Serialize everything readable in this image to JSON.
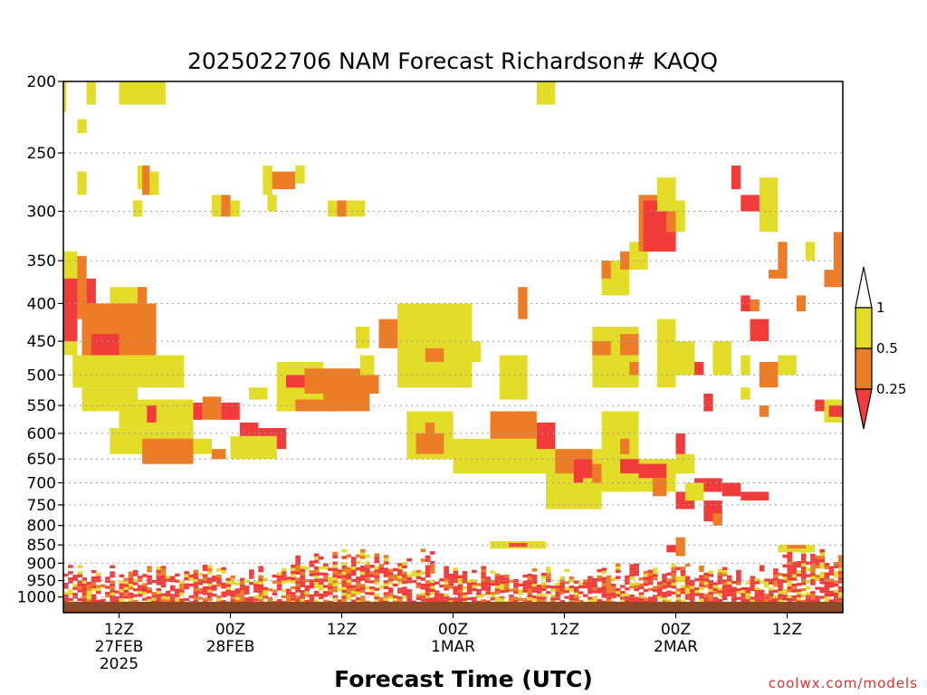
{
  "chart_data": {
    "type": "heatmap",
    "title": "2025022706 NAM Forecast Richardson# KAQQ",
    "xlabel": "Forecast Time (UTC)",
    "ylabel": "",
    "y_axis": {
      "scale": "pressure (log)",
      "range_hpa": [
        200,
        1050
      ],
      "ticks": [
        200,
        250,
        300,
        350,
        400,
        450,
        500,
        550,
        600,
        650,
        700,
        750,
        800,
        850,
        900,
        950,
        1000
      ]
    },
    "x_axis": {
      "range_hours": [
        0,
        84
      ],
      "ticks": [
        {
          "hour": 6,
          "line1": "12Z",
          "line2": "27FEB",
          "line3": "2025"
        },
        {
          "hour": 18,
          "line1": "00Z",
          "line2": "28FEB",
          "line3": ""
        },
        {
          "hour": 30,
          "line1": "12Z",
          "line2": "",
          "line3": ""
        },
        {
          "hour": 42,
          "line1": "00Z",
          "line2": "1MAR",
          "line3": ""
        },
        {
          "hour": 54,
          "line1": "12Z",
          "line2": "",
          "line3": ""
        },
        {
          "hour": 66,
          "line1": "00Z",
          "line2": "2MAR",
          "line3": ""
        },
        {
          "hour": 78,
          "line1": "12Z",
          "line2": "",
          "line3": ""
        }
      ]
    },
    "colorbar": {
      "levels": [
        "1",
        "0.5",
        "0.25"
      ],
      "colors": {
        "yellow": "#e3dd2a",
        "orange": "#ec7c26",
        "red": "#f23c3c",
        "ground": "#8c4a27"
      }
    },
    "grid": "dotted horizontal lines",
    "cells": [
      [
        0,
        0.3,
        200,
        220,
        "Y"
      ],
      [
        2.5,
        3.5,
        200,
        215,
        "Y"
      ],
      [
        6,
        11,
        200,
        215,
        "Y"
      ],
      [
        51,
        53,
        200,
        215,
        "Y"
      ],
      [
        1.5,
        2.5,
        225,
        235,
        "Y"
      ],
      [
        1.5,
        2.5,
        265,
        285,
        "Y"
      ],
      [
        8,
        8.5,
        260,
        280,
        "Y"
      ],
      [
        8.5,
        9.3,
        260,
        285,
        "O"
      ],
      [
        9.3,
        10.3,
        265,
        285,
        "Y"
      ],
      [
        7.5,
        8.5,
        290,
        305,
        "Y"
      ],
      [
        16,
        17,
        285,
        305,
        "Y"
      ],
      [
        17,
        18,
        285,
        305,
        "O"
      ],
      [
        18,
        19,
        290,
        305,
        "Y"
      ],
      [
        21.5,
        22.5,
        260,
        285,
        "Y"
      ],
      [
        22.5,
        25,
        265,
        280,
        "O"
      ],
      [
        25,
        26,
        260,
        275,
        "Y"
      ],
      [
        22,
        23,
        285,
        300,
        "Y"
      ],
      [
        28.5,
        29.5,
        290,
        305,
        "Y"
      ],
      [
        29.5,
        30.5,
        290,
        305,
        "O"
      ],
      [
        30.5,
        31.5,
        290,
        305,
        "Y"
      ],
      [
        31.5,
        32.5,
        290,
        305,
        "Y"
      ],
      [
        0,
        1.5,
        340,
        470,
        "Y"
      ],
      [
        0,
        1.5,
        370,
        450,
        "R"
      ],
      [
        1.5,
        2.5,
        345,
        420,
        "O"
      ],
      [
        2.5,
        3.5,
        370,
        400,
        "R"
      ],
      [
        2,
        10,
        400,
        470,
        "O"
      ],
      [
        3,
        6,
        440,
        480,
        "R"
      ],
      [
        5,
        11,
        470,
        510,
        "O"
      ],
      [
        1,
        13,
        470,
        520,
        "Y"
      ],
      [
        5,
        8.5,
        380,
        400,
        "Y"
      ],
      [
        8,
        9,
        380,
        400,
        "O"
      ],
      [
        2,
        8,
        520,
        560,
        "Y"
      ],
      [
        6,
        14,
        540,
        590,
        "Y"
      ],
      [
        9,
        10,
        550,
        580,
        "R"
      ],
      [
        14,
        15,
        545,
        575,
        "R"
      ],
      [
        15,
        17,
        535,
        575,
        "O"
      ],
      [
        17,
        19,
        545,
        575,
        "R"
      ],
      [
        5,
        14,
        590,
        640,
        "Y"
      ],
      [
        8.5,
        14,
        610,
        660,
        "O"
      ],
      [
        14,
        16,
        610,
        640,
        "Y"
      ],
      [
        16,
        17.5,
        630,
        650,
        "O"
      ],
      [
        19,
        21,
        580,
        620,
        "R"
      ],
      [
        21,
        24,
        590,
        630,
        "R"
      ],
      [
        18,
        23,
        605,
        650,
        "Y"
      ],
      [
        23,
        28,
        480,
        560,
        "Y"
      ],
      [
        24,
        27,
        500,
        520,
        "R"
      ],
      [
        26,
        32,
        490,
        530,
        "O"
      ],
      [
        28,
        33,
        520,
        560,
        "O"
      ],
      [
        30,
        34,
        500,
        530,
        "O"
      ],
      [
        25,
        30,
        540,
        560,
        "O"
      ],
      [
        20,
        22,
        520,
        540,
        "Y"
      ],
      [
        31.5,
        33,
        430,
        460,
        "Y"
      ],
      [
        32,
        33.5,
        470,
        500,
        "Y"
      ],
      [
        34,
        41,
        420,
        460,
        "O"
      ],
      [
        36,
        44,
        400,
        520,
        "Y"
      ],
      [
        39,
        41,
        460,
        480,
        "O"
      ],
      [
        43,
        45,
        450,
        480,
        "Y"
      ],
      [
        47,
        50,
        470,
        540,
        "Y"
      ],
      [
        39,
        40,
        400,
        420,
        "Y"
      ],
      [
        49,
        50,
        380,
        420,
        "O"
      ],
      [
        37,
        42,
        560,
        650,
        "Y"
      ],
      [
        38,
        41,
        600,
        640,
        "O"
      ],
      [
        39,
        40,
        580,
        600,
        "O"
      ],
      [
        42,
        52,
        610,
        680,
        "Y"
      ],
      [
        46,
        51,
        560,
        610,
        "O"
      ],
      [
        51,
        53,
        580,
        630,
        "R"
      ],
      [
        52,
        58,
        630,
        760,
        "Y"
      ],
      [
        53,
        57,
        630,
        680,
        "O"
      ],
      [
        55,
        57,
        650,
        700,
        "R"
      ],
      [
        56,
        58,
        690,
        750,
        "Y"
      ],
      [
        57,
        58,
        660,
        700,
        "O"
      ],
      [
        58,
        62,
        560,
        720,
        "Y"
      ],
      [
        60,
        62,
        650,
        680,
        "R"
      ],
      [
        60,
        61,
        610,
        640,
        "O"
      ],
      [
        62,
        66,
        650,
        720,
        "Y"
      ],
      [
        62,
        65,
        660,
        690,
        "R"
      ],
      [
        63.5,
        65,
        690,
        730,
        "O"
      ],
      [
        57,
        62,
        430,
        520,
        "Y"
      ],
      [
        57,
        59,
        450,
        470,
        "O"
      ],
      [
        60,
        62,
        440,
        470,
        "O"
      ],
      [
        61,
        62,
        480,
        500,
        "O"
      ],
      [
        64,
        66,
        420,
        520,
        "Y"
      ],
      [
        58,
        61,
        350,
        390,
        "Y"
      ],
      [
        58,
        59,
        350,
        370,
        "O"
      ],
      [
        60,
        61,
        340,
        360,
        "O"
      ],
      [
        61,
        63,
        330,
        360,
        "Y"
      ],
      [
        62,
        66,
        285,
        340,
        "O"
      ],
      [
        62.5,
        65,
        290,
        340,
        "R"
      ],
      [
        63,
        66,
        320,
        340,
        "R"
      ],
      [
        64,
        66,
        270,
        300,
        "Y"
      ],
      [
        66,
        67,
        290,
        320,
        "Y"
      ],
      [
        66,
        67,
        600,
        680,
        "R"
      ],
      [
        66,
        68,
        640,
        680,
        "Y"
      ],
      [
        68,
        71,
        690,
        720,
        "R"
      ],
      [
        71,
        73,
        700,
        730,
        "R"
      ],
      [
        73,
        76,
        720,
        740,
        "R"
      ],
      [
        66,
        68,
        720,
        760,
        "R"
      ],
      [
        67,
        69,
        700,
        740,
        "Y"
      ],
      [
        69,
        71,
        740,
        790,
        "R"
      ],
      [
        70,
        71,
        770,
        800,
        "O"
      ],
      [
        69,
        70,
        530,
        560,
        "R"
      ],
      [
        68,
        69,
        480,
        500,
        "R"
      ],
      [
        66,
        68,
        450,
        500,
        "Y"
      ],
      [
        70,
        72,
        450,
        500,
        "Y"
      ],
      [
        75,
        77,
        270,
        300,
        "Y"
      ],
      [
        72,
        73,
        260,
        280,
        "R"
      ],
      [
        73,
        75,
        285,
        300,
        "R"
      ],
      [
        75,
        77,
        300,
        320,
        "Y"
      ],
      [
        76,
        78,
        360,
        370,
        "O"
      ],
      [
        74,
        76,
        420,
        450,
        "R"
      ],
      [
        74,
        75,
        395,
        410,
        "O"
      ],
      [
        73,
        74,
        390,
        410,
        "R"
      ],
      [
        77,
        78,
        330,
        360,
        "O"
      ],
      [
        79,
        80,
        390,
        410,
        "O"
      ],
      [
        80,
        81,
        330,
        350,
        "Y"
      ],
      [
        73,
        74,
        470,
        500,
        "Y"
      ],
      [
        75,
        77,
        480,
        520,
        "O"
      ],
      [
        77,
        79,
        470,
        500,
        "Y"
      ],
      [
        73,
        74,
        520,
        540,
        "Y"
      ],
      [
        75,
        76,
        550,
        570,
        "O"
      ],
      [
        83,
        84,
        320,
        360,
        "O"
      ],
      [
        82,
        84,
        360,
        380,
        "O"
      ],
      [
        82,
        84,
        540,
        580,
        "Y"
      ],
      [
        82.5,
        84,
        550,
        570,
        "R"
      ],
      [
        81,
        82,
        540,
        560,
        "R"
      ],
      [
        46,
        52,
        840,
        860,
        "Y"
      ],
      [
        48,
        50,
        845,
        855,
        "R"
      ],
      [
        65,
        66,
        850,
        870,
        "R"
      ],
      [
        66,
        67,
        830,
        880,
        "O"
      ],
      [
        77,
        81,
        850,
        870,
        "Y"
      ],
      [
        78,
        80,
        850,
        860,
        "O"
      ]
    ]
  },
  "credit": "coolwx.com/models"
}
